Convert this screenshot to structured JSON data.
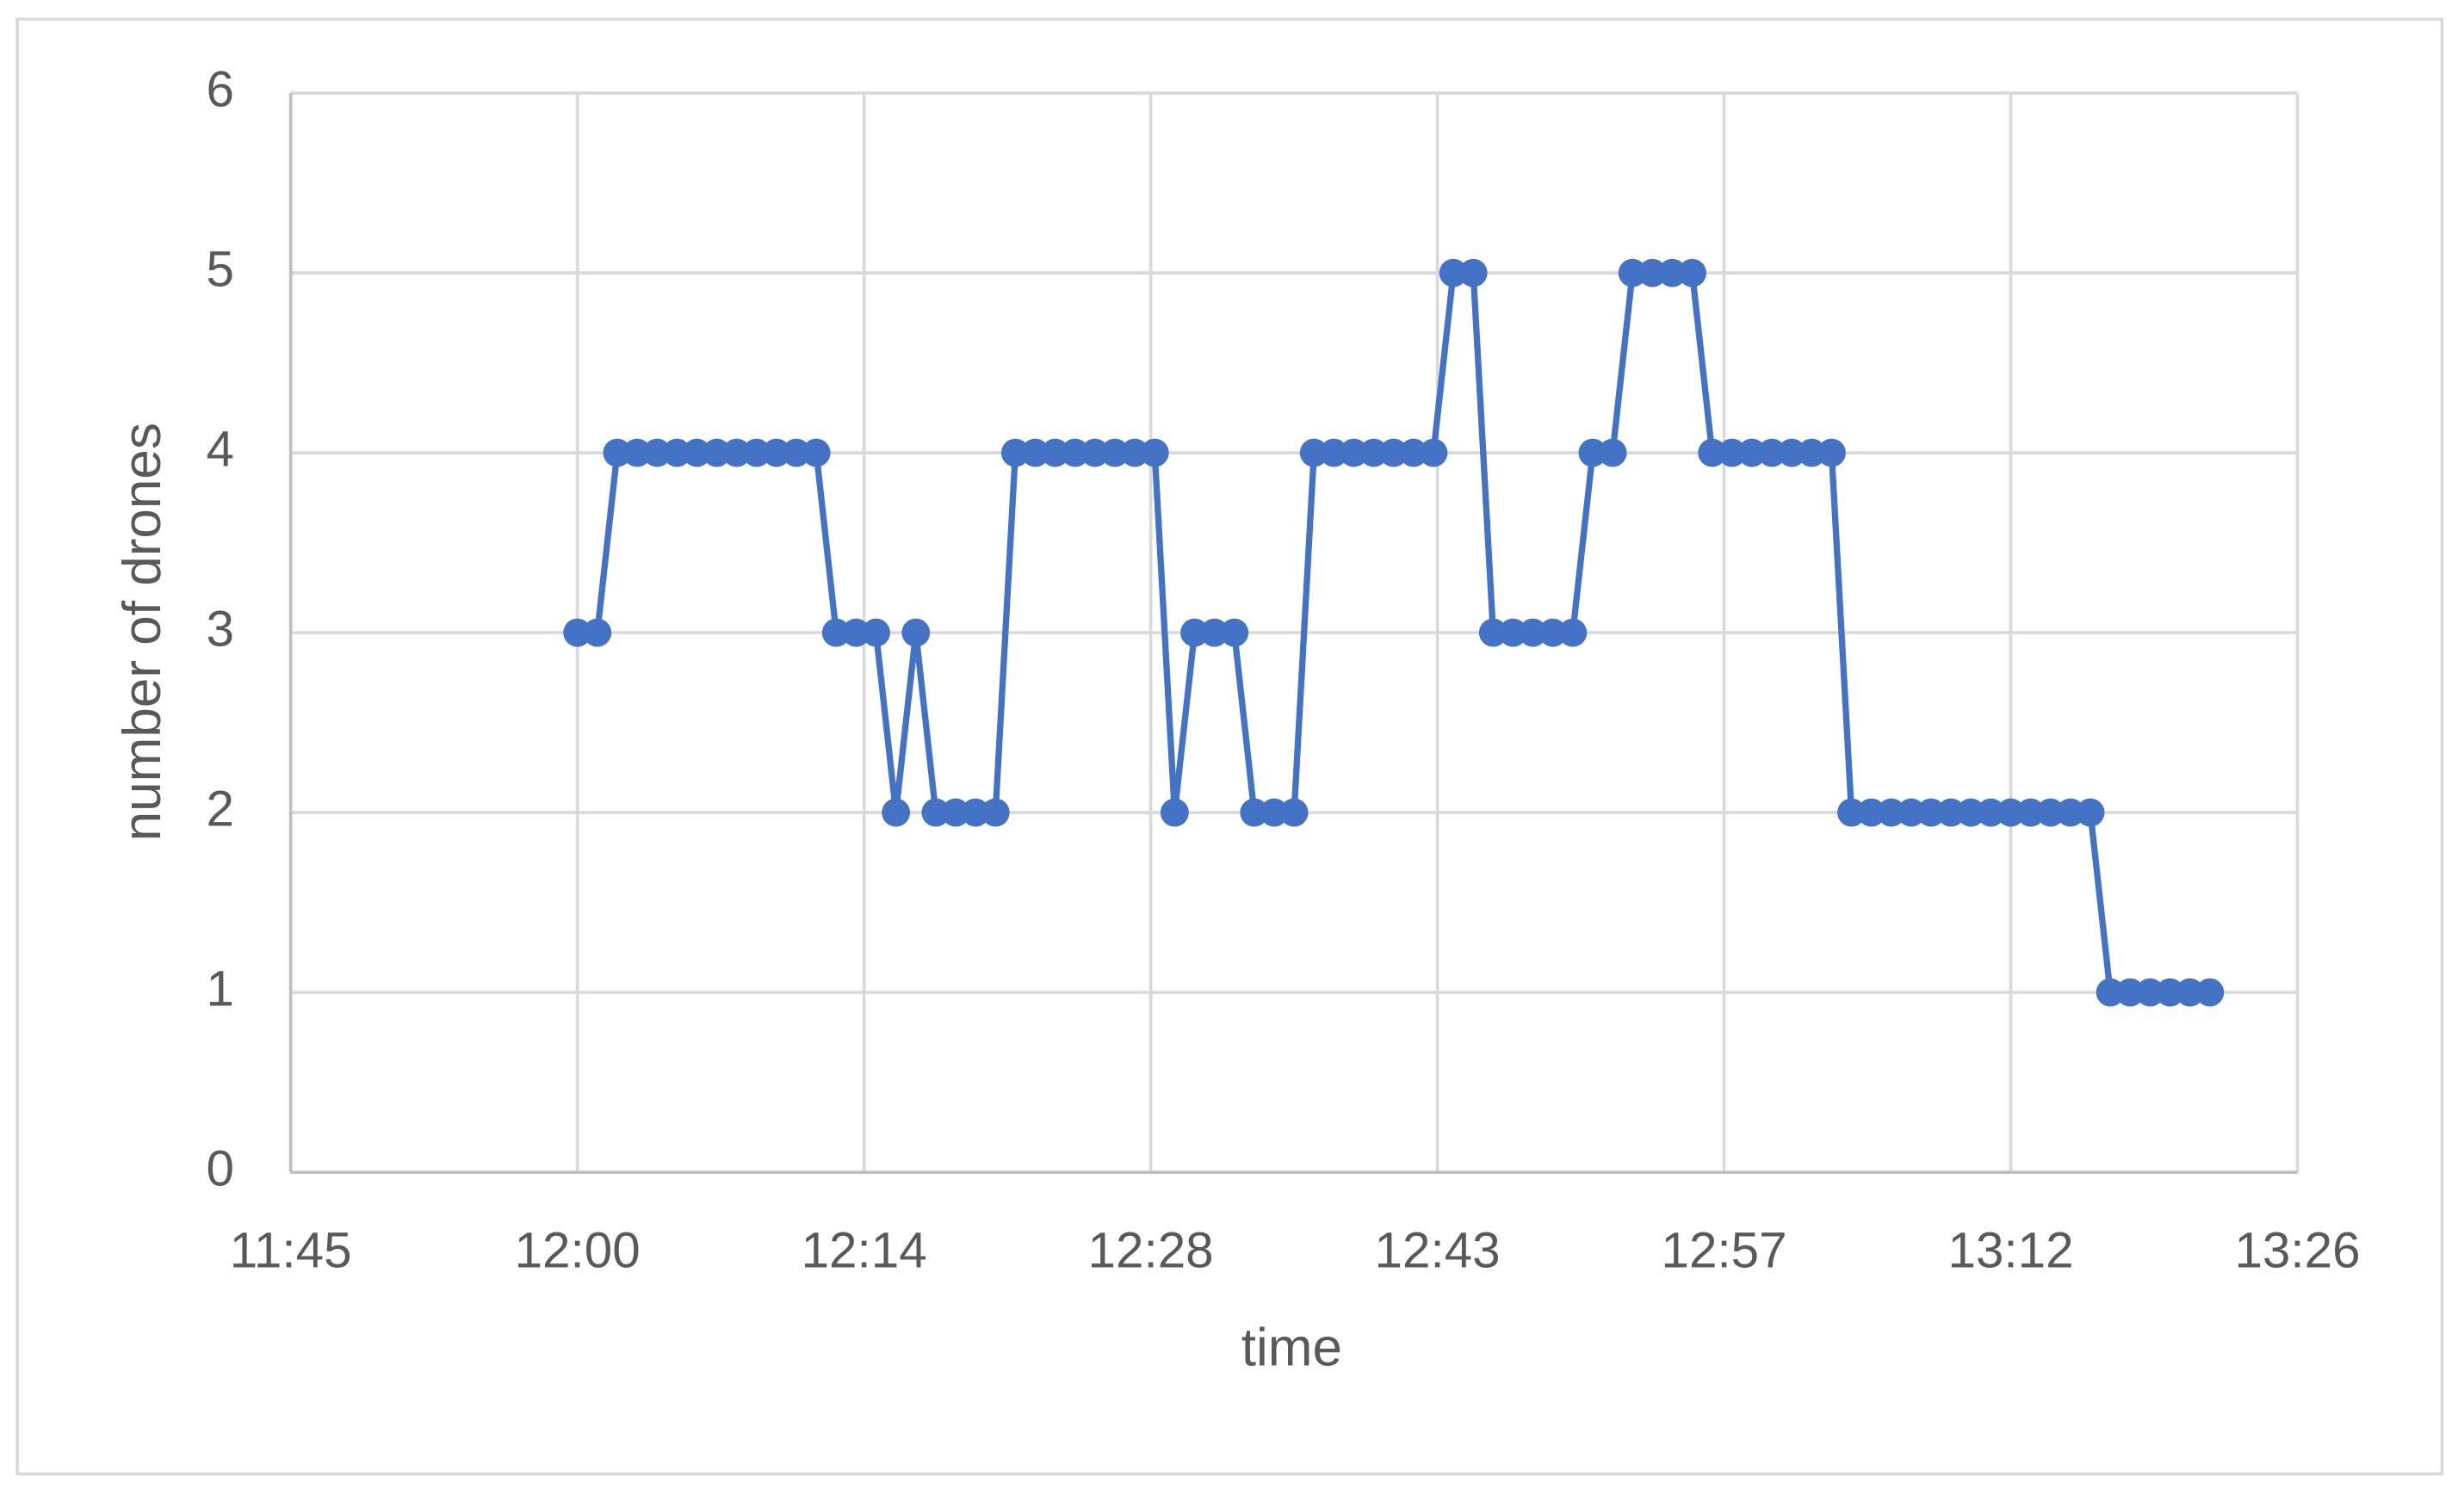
{
  "chart_data": {
    "type": "line",
    "x_label": "time",
    "y_label": "number of drones",
    "x": [
      720,
      721,
      722,
      723,
      724,
      725,
      726,
      727,
      728,
      729,
      730,
      731,
      732,
      733,
      734,
      735,
      736,
      737,
      738,
      739,
      740,
      741,
      742,
      743,
      744,
      745,
      746,
      747,
      748,
      749,
      750,
      751,
      752,
      753,
      754,
      755,
      756,
      757,
      758,
      759,
      760,
      761,
      762,
      763,
      764,
      765,
      766,
      767,
      768,
      769,
      770,
      771,
      772,
      773,
      774,
      775,
      776,
      777,
      778,
      779,
      780,
      781,
      782,
      783,
      784,
      785,
      786,
      787,
      788,
      789,
      790,
      791,
      792,
      793,
      794,
      795,
      796,
      797,
      798,
      799,
      800,
      801,
      802
    ],
    "series": [
      {
        "name": "number of drones",
        "color": "#4472c4",
        "values": [
          3,
          3,
          4,
          4,
          4,
          4,
          4,
          4,
          4,
          4,
          4,
          4,
          4,
          3,
          3,
          3,
          2,
          3,
          2,
          2,
          2,
          2,
          4,
          4,
          4,
          4,
          4,
          4,
          4,
          4,
          2,
          3,
          3,
          3,
          2,
          2,
          2,
          4,
          4,
          4,
          4,
          4,
          4,
          4,
          5,
          5,
          3,
          3,
          3,
          3,
          3,
          4,
          4,
          5,
          5,
          5,
          5,
          4,
          4,
          4,
          4,
          4,
          4,
          4,
          2,
          2,
          2,
          2,
          2,
          2,
          2,
          2,
          2,
          2,
          2,
          2,
          2,
          1,
          1,
          1,
          1,
          1,
          1
        ]
      }
    ],
    "xlim": [
      705.6,
      806.4
    ],
    "xticks": [
      {
        "value": 705.6,
        "label": "11:45"
      },
      {
        "value": 720,
        "label": "12:00"
      },
      {
        "value": 734.4,
        "label": "12:14"
      },
      {
        "value": 748.8,
        "label": "12:28"
      },
      {
        "value": 763.2,
        "label": "12:43"
      },
      {
        "value": 777.6,
        "label": "12:57"
      },
      {
        "value": 792,
        "label": "13:12"
      },
      {
        "value": 806.4,
        "label": "13:26"
      }
    ],
    "ylim": [
      0,
      6
    ],
    "yticks": [
      0,
      1,
      2,
      3,
      4,
      5,
      6
    ],
    "grid": true
  }
}
